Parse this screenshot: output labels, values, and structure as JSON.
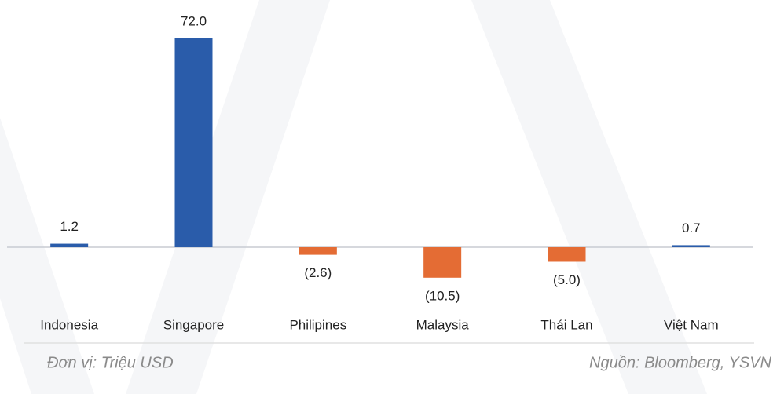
{
  "chart_data": {
    "type": "bar",
    "categories": [
      "Indonesia",
      "Singapore",
      "Philipines",
      "Malaysia",
      "Thái Lan",
      "Việt Nam"
    ],
    "values": [
      1.2,
      72.0,
      -2.6,
      -10.5,
      -5.0,
      0.7
    ],
    "value_labels": [
      "1.2",
      "72.0",
      "(2.6)",
      "(10.5)",
      "(5.0)",
      "0.7"
    ],
    "colors": [
      "#2a5caa",
      "#2a5caa",
      "#e46c34",
      "#e46c34",
      "#e46c34",
      "#2a5caa"
    ],
    "ylim": [
      -20,
      80
    ],
    "grid": false,
    "unit_note": "Đơn vị: Triệu USD",
    "source": "Nguồn: Bloomberg, YSVN"
  }
}
